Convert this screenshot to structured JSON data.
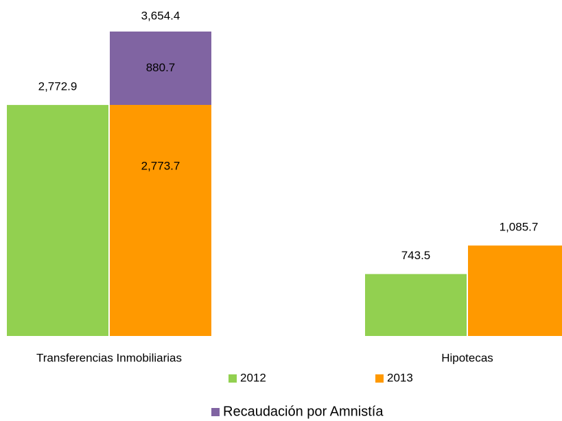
{
  "chart_data": {
    "type": "bar",
    "categories": [
      "Transferencias Inmobiliarias",
      "Hipotecas"
    ],
    "series": [
      {
        "name": "2012",
        "color": "#92d050",
        "values": [
          2772.9,
          743.5
        ],
        "value_labels": [
          "2,772.9",
          "743.5"
        ]
      },
      {
        "name": "2013",
        "color": "#ff9900",
        "values": [
          2773.7,
          1085.7
        ],
        "value_labels": [
          "2,773.7",
          "1,085.7"
        ]
      },
      {
        "name": "Recaudación por Amnistía",
        "color": "#8064a2",
        "values": [
          880.7,
          null
        ],
        "value_labels": [
          "880.7",
          null
        ],
        "stacked_on": "2013"
      }
    ],
    "annotations": [
      "3,654.4"
    ],
    "ylim": [
      0,
      4000
    ],
    "grid": false,
    "legend": "bottom"
  }
}
